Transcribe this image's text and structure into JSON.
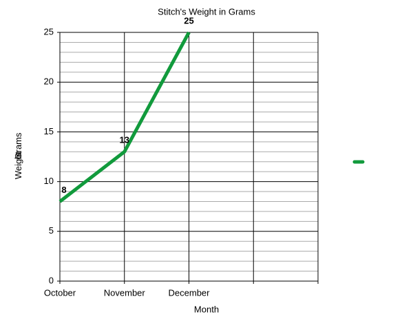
{
  "chart_data": {
    "type": "line",
    "title": "Stitch's Weight in Grams",
    "x_label": "Month",
    "y_label": "Weight in Grams",
    "categories": [
      "October",
      "November",
      "December",
      null,
      null
    ],
    "series": [
      {
        "color": "#119a3c",
        "values": [
          8,
          13,
          25,
          null,
          null
        ]
      }
    ],
    "ylim": [
      0,
      25
    ],
    "yticks": [
      0,
      5,
      10,
      15,
      20,
      25
    ],
    "grid": true,
    "minor_grid": true,
    "legend": "right"
  }
}
